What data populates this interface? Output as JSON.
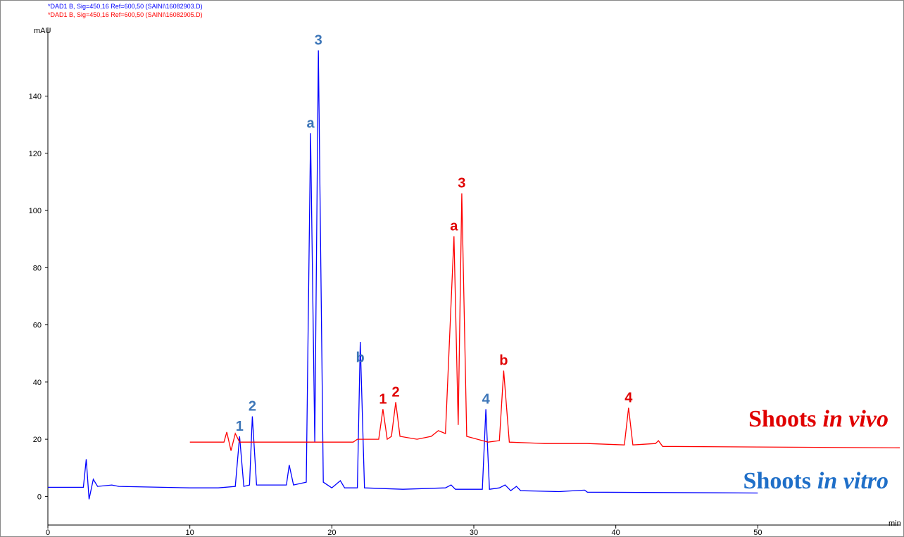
{
  "chart_data": {
    "type": "line",
    "header": [
      {
        "text": "*DAD1 B, Sig=450,16 Ref=600,50 (SAINI\\16082903.D)",
        "color": "#0000ff"
      },
      {
        "text": "*DAD1 B, Sig=450,16 Ref=600,50 (SAINI\\16082905.D)",
        "color": "#ff0000"
      }
    ],
    "y_label": "mAU",
    "x_label": "min",
    "xlim": [
      0,
      60
    ],
    "xticks": [
      0,
      10,
      20,
      30,
      40,
      50
    ],
    "ylim": [
      -10,
      164
    ],
    "yticks": [
      0,
      20,
      40,
      60,
      80,
      100,
      120,
      140
    ],
    "series": [
      {
        "name": [
          "Shoots",
          "in vitro"
        ],
        "color": "#0000ff",
        "label_color": "#1f6fc8",
        "x": [
          0,
          2.5,
          2.7,
          2.9,
          3.2,
          3.5,
          4.5,
          5,
          10,
          12,
          13.2,
          13.5,
          13.8,
          14.2,
          14.4,
          14.7,
          16.8,
          17.0,
          17.3,
          18.2,
          18.5,
          18.8,
          19.05,
          19.4,
          20,
          20.6,
          20.9,
          21.8,
          22.0,
          22.3,
          25,
          28,
          28.4,
          28.7,
          30.6,
          30.85,
          31.1,
          31.8,
          32.2,
          32.6,
          33,
          33.3,
          36,
          37.8,
          38,
          50
        ],
        "values": [
          3.2,
          3.2,
          13,
          -1,
          6,
          3.5,
          4,
          3.5,
          3,
          3,
          3.5,
          21,
          3.5,
          4,
          28,
          4,
          4,
          11,
          4,
          5,
          127,
          19,
          156,
          5,
          3,
          5.5,
          3,
          3,
          54,
          3,
          2.5,
          3,
          4,
          2.5,
          2.5,
          30.5,
          2.5,
          3,
          4,
          2,
          3.5,
          2,
          1.7,
          2.2,
          1.5,
          1.2
        ]
      },
      {
        "name": [
          "Shoots",
          "in vivo"
        ],
        "color": "#ff0000",
        "label_color": "#e00000",
        "x": [
          10,
          12.4,
          12.6,
          12.9,
          13.2,
          13.5,
          18,
          21.5,
          21.8,
          23.3,
          23.6,
          23.9,
          24.2,
          24.5,
          24.8,
          26,
          27,
          27.5,
          28,
          28.6,
          28.9,
          29.15,
          29.5,
          31,
          31.8,
          32.1,
          32.5,
          35,
          38,
          40.6,
          40.9,
          41.2,
          42.8,
          43,
          43.3,
          50,
          60
        ],
        "values": [
          19,
          19,
          22.5,
          16,
          22,
          19,
          19,
          19,
          20,
          20,
          30.5,
          20,
          21,
          33,
          21,
          20,
          21,
          23,
          22,
          91,
          25,
          106,
          21,
          19,
          19.5,
          44,
          19,
          18.5,
          18.5,
          18,
          31,
          18,
          18.5,
          19.5,
          17.5,
          17.3,
          17
        ]
      }
    ],
    "annotations": [
      {
        "text": "1",
        "x": 13.5,
        "y": 21,
        "color": "#3d76b8"
      },
      {
        "text": "2",
        "x": 14.4,
        "y": 28,
        "color": "#3d76b8"
      },
      {
        "text": "a",
        "x": 18.5,
        "y": 127,
        "color": "#3d76b8"
      },
      {
        "text": "3",
        "x": 19.05,
        "y": 156,
        "color": "#3d76b8"
      },
      {
        "text": "b",
        "x": 22.0,
        "y": 45,
        "color": "#3d76b8"
      },
      {
        "text": "4",
        "x": 30.85,
        "y": 30.5,
        "color": "#3d76b8"
      },
      {
        "text": "1",
        "x": 23.6,
        "y": 30.5,
        "color": "#e00000"
      },
      {
        "text": "2",
        "x": 24.5,
        "y": 33,
        "color": "#e00000"
      },
      {
        "text": "a",
        "x": 28.6,
        "y": 91,
        "color": "#e00000"
      },
      {
        "text": "3",
        "x": 29.15,
        "y": 106,
        "color": "#e00000"
      },
      {
        "text": "b",
        "x": 32.1,
        "y": 44,
        "color": "#e00000"
      },
      {
        "text": "4",
        "x": 40.9,
        "y": 31,
        "color": "#e00000"
      }
    ]
  }
}
